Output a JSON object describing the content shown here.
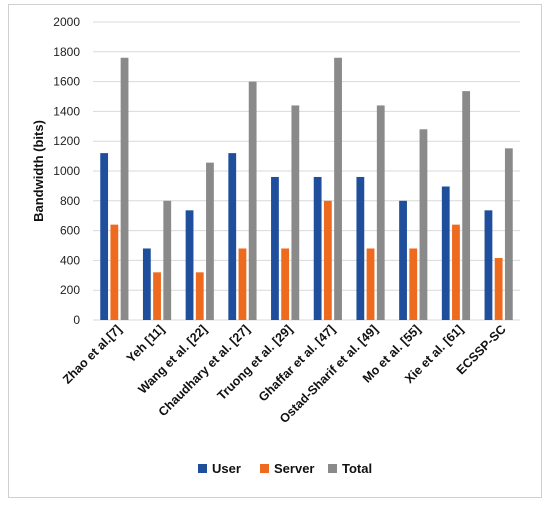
{
  "chart_data": {
    "type": "bar",
    "title": "",
    "xlabel": "",
    "ylabel": "Bandwidth (bits)",
    "ylim": [
      0,
      2000
    ],
    "yticks": [
      0,
      200,
      400,
      600,
      800,
      1000,
      1200,
      1400,
      1600,
      1800,
      2000
    ],
    "grid": true,
    "legend_position": "bottom",
    "categories": [
      "Zhao et al.[7]",
      "Yeh [11]",
      "Wang et al. [22]",
      "Chaudhary et al. [27]",
      "Truong et al. [29]",
      "Ghaffar et al. [47]",
      "Ostad-Sharif et al. [49]",
      "Mo et al.  [55]",
      "Xie et al. [61]",
      "ECSSP-SC"
    ],
    "series": [
      {
        "name": "User",
        "color": "#1f4e9c",
        "values": [
          1120,
          480,
          736,
          1120,
          960,
          960,
          960,
          800,
          896,
          736
        ]
      },
      {
        "name": "Server",
        "color": "#ee6a1f",
        "values": [
          640,
          320,
          320,
          480,
          480,
          800,
          480,
          480,
          640,
          416
        ]
      },
      {
        "name": "Total",
        "color": "#8a8a8a",
        "values": [
          1760,
          800,
          1056,
          1600,
          1440,
          1760,
          1440,
          1280,
          1536,
          1152
        ]
      }
    ]
  }
}
